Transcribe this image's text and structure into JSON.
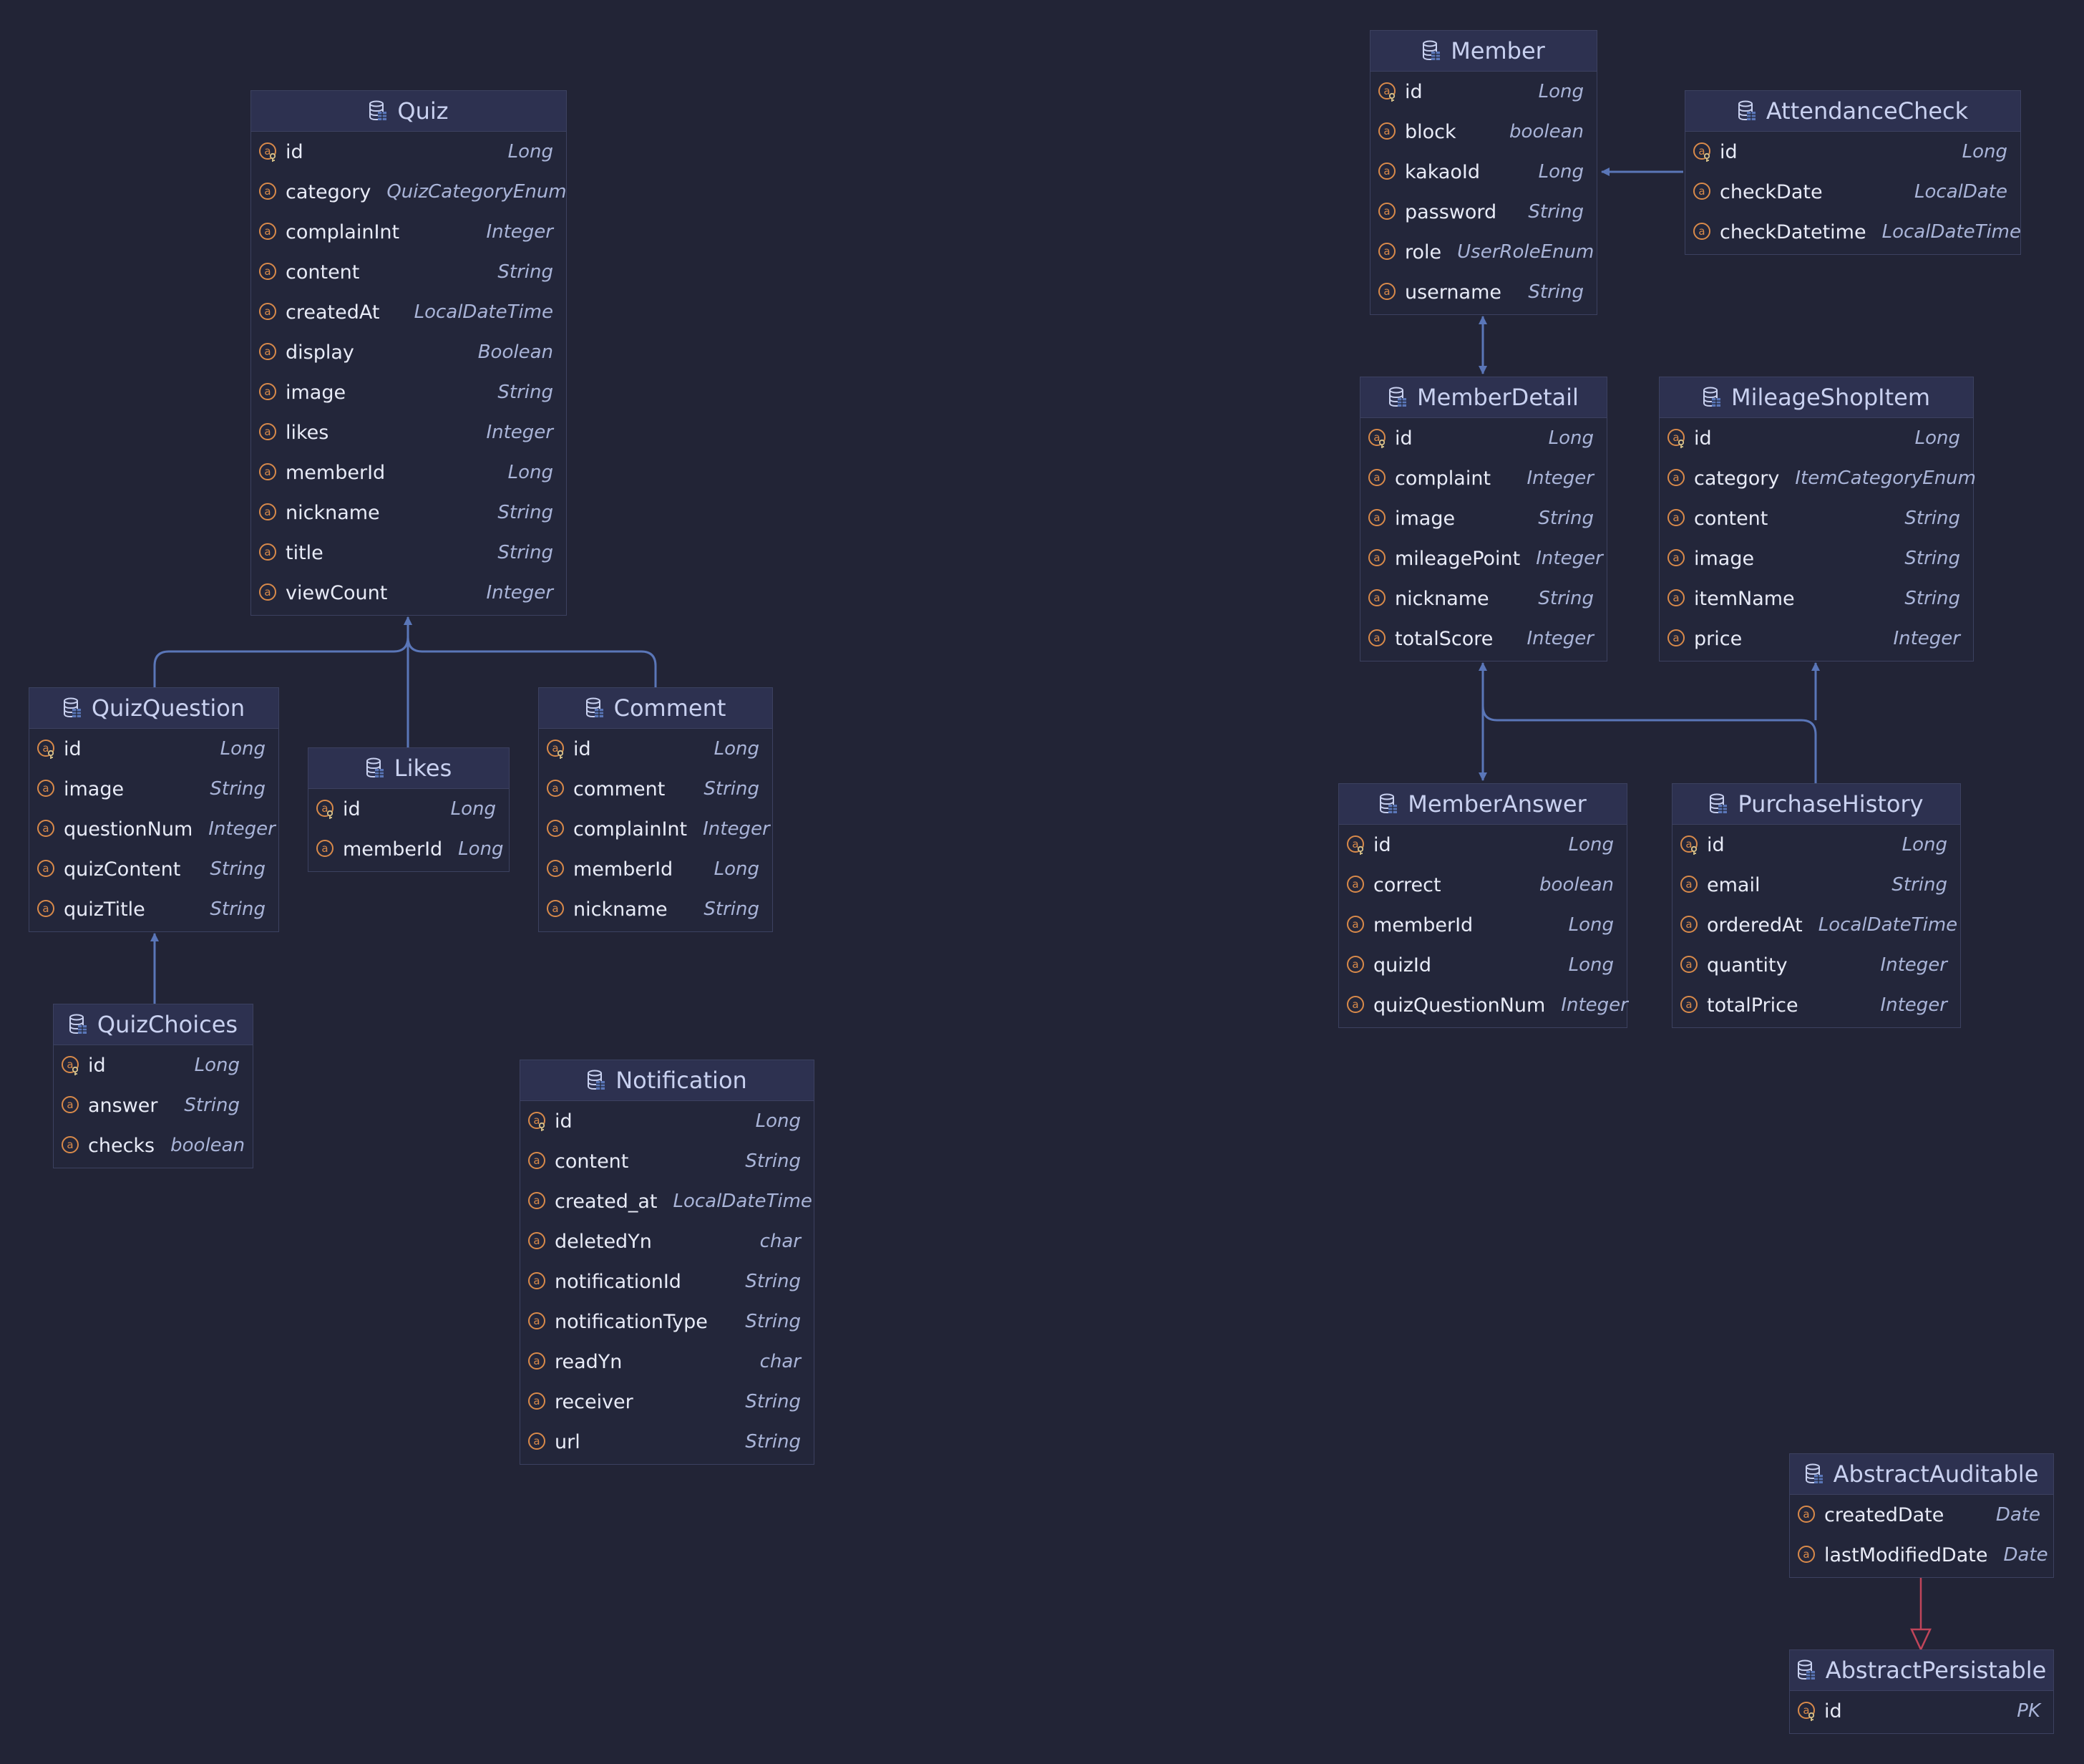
{
  "entities": {
    "quiz": {
      "title": "Quiz",
      "fields": [
        {
          "name": "id",
          "type": "Long",
          "pk": true
        },
        {
          "name": "category",
          "type": "QuizCategoryEnum"
        },
        {
          "name": "complainInt",
          "type": "Integer"
        },
        {
          "name": "content",
          "type": "String"
        },
        {
          "name": "createdAt",
          "type": "LocalDateTime"
        },
        {
          "name": "display",
          "type": "Boolean"
        },
        {
          "name": "image",
          "type": "String"
        },
        {
          "name": "likes",
          "type": "Integer"
        },
        {
          "name": "memberId",
          "type": "Long"
        },
        {
          "name": "nickname",
          "type": "String"
        },
        {
          "name": "title",
          "type": "String"
        },
        {
          "name": "viewCount",
          "type": "Integer"
        }
      ]
    },
    "quiz_question": {
      "title": "QuizQuestion",
      "fields": [
        {
          "name": "id",
          "type": "Long",
          "pk": true
        },
        {
          "name": "image",
          "type": "String"
        },
        {
          "name": "questionNum",
          "type": "Integer"
        },
        {
          "name": "quizContent",
          "type": "String"
        },
        {
          "name": "quizTitle",
          "type": "String"
        }
      ]
    },
    "likes": {
      "title": "Likes",
      "fields": [
        {
          "name": "id",
          "type": "Long",
          "pk": true
        },
        {
          "name": "memberId",
          "type": "Long"
        }
      ]
    },
    "comment": {
      "title": "Comment",
      "fields": [
        {
          "name": "id",
          "type": "Long",
          "pk": true
        },
        {
          "name": "comment",
          "type": "String"
        },
        {
          "name": "complainInt",
          "type": "Integer"
        },
        {
          "name": "memberId",
          "type": "Long"
        },
        {
          "name": "nickname",
          "type": "String"
        }
      ]
    },
    "quiz_choices": {
      "title": "QuizChoices",
      "fields": [
        {
          "name": "id",
          "type": "Long",
          "pk": true
        },
        {
          "name": "answer",
          "type": "String"
        },
        {
          "name": "checks",
          "type": "boolean"
        }
      ]
    },
    "notification": {
      "title": "Notification",
      "fields": [
        {
          "name": "id",
          "type": "Long",
          "pk": true
        },
        {
          "name": "content",
          "type": "String"
        },
        {
          "name": "created_at",
          "type": "LocalDateTime"
        },
        {
          "name": "deletedYn",
          "type": "char"
        },
        {
          "name": "notificationId",
          "type": "String"
        },
        {
          "name": "notificationType",
          "type": "String"
        },
        {
          "name": "readYn",
          "type": "char"
        },
        {
          "name": "receiver",
          "type": "String"
        },
        {
          "name": "url",
          "type": "String"
        }
      ]
    },
    "member": {
      "title": "Member",
      "fields": [
        {
          "name": "id",
          "type": "Long",
          "pk": true
        },
        {
          "name": "block",
          "type": "boolean"
        },
        {
          "name": "kakaoId",
          "type": "Long"
        },
        {
          "name": "password",
          "type": "String"
        },
        {
          "name": "role",
          "type": "UserRoleEnum"
        },
        {
          "name": "username",
          "type": "String"
        }
      ]
    },
    "attendance_check": {
      "title": "AttendanceCheck",
      "fields": [
        {
          "name": "id",
          "type": "Long",
          "pk": true
        },
        {
          "name": "checkDate",
          "type": "LocalDate"
        },
        {
          "name": "checkDatetime",
          "type": "LocalDateTime"
        }
      ]
    },
    "member_detail": {
      "title": "MemberDetail",
      "fields": [
        {
          "name": "id",
          "type": "Long",
          "pk": true
        },
        {
          "name": "complaint",
          "type": "Integer"
        },
        {
          "name": "image",
          "type": "String"
        },
        {
          "name": "mileagePoint",
          "type": "Integer"
        },
        {
          "name": "nickname",
          "type": "String"
        },
        {
          "name": "totalScore",
          "type": "Integer"
        }
      ]
    },
    "mileage_shop_item": {
      "title": "MileageShopItem",
      "fields": [
        {
          "name": "id",
          "type": "Long",
          "pk": true
        },
        {
          "name": "category",
          "type": "ItemCategoryEnum"
        },
        {
          "name": "content",
          "type": "String"
        },
        {
          "name": "image",
          "type": "String"
        },
        {
          "name": "itemName",
          "type": "String"
        },
        {
          "name": "price",
          "type": "Integer"
        }
      ]
    },
    "member_answer": {
      "title": "MemberAnswer",
      "fields": [
        {
          "name": "id",
          "type": "Long",
          "pk": true
        },
        {
          "name": "correct",
          "type": "boolean"
        },
        {
          "name": "memberId",
          "type": "Long"
        },
        {
          "name": "quizId",
          "type": "Long"
        },
        {
          "name": "quizQuestionNum",
          "type": "Integer"
        }
      ]
    },
    "purchase_history": {
      "title": "PurchaseHistory",
      "fields": [
        {
          "name": "id",
          "type": "Long",
          "pk": true
        },
        {
          "name": "email",
          "type": "String"
        },
        {
          "name": "orderedAt",
          "type": "LocalDateTime"
        },
        {
          "name": "quantity",
          "type": "Integer"
        },
        {
          "name": "totalPrice",
          "type": "Integer"
        }
      ]
    },
    "abstract_auditable": {
      "title": "AbstractAuditable",
      "fields": [
        {
          "name": "createdDate",
          "type": "Date"
        },
        {
          "name": "lastModifiedDate",
          "type": "Date"
        }
      ]
    },
    "abstract_persistable": {
      "title": "AbstractPersistable",
      "fields": [
        {
          "name": "id",
          "type": "PK",
          "pk": true
        }
      ]
    }
  },
  "colors": {
    "background": "#222436",
    "header": "#2d3150",
    "border": "#3c4160",
    "association_line": "#5a76b8",
    "inheritance_line": "#c0455a",
    "field_badge": "#d98a4a",
    "key_mark": "#d9c38a"
  }
}
